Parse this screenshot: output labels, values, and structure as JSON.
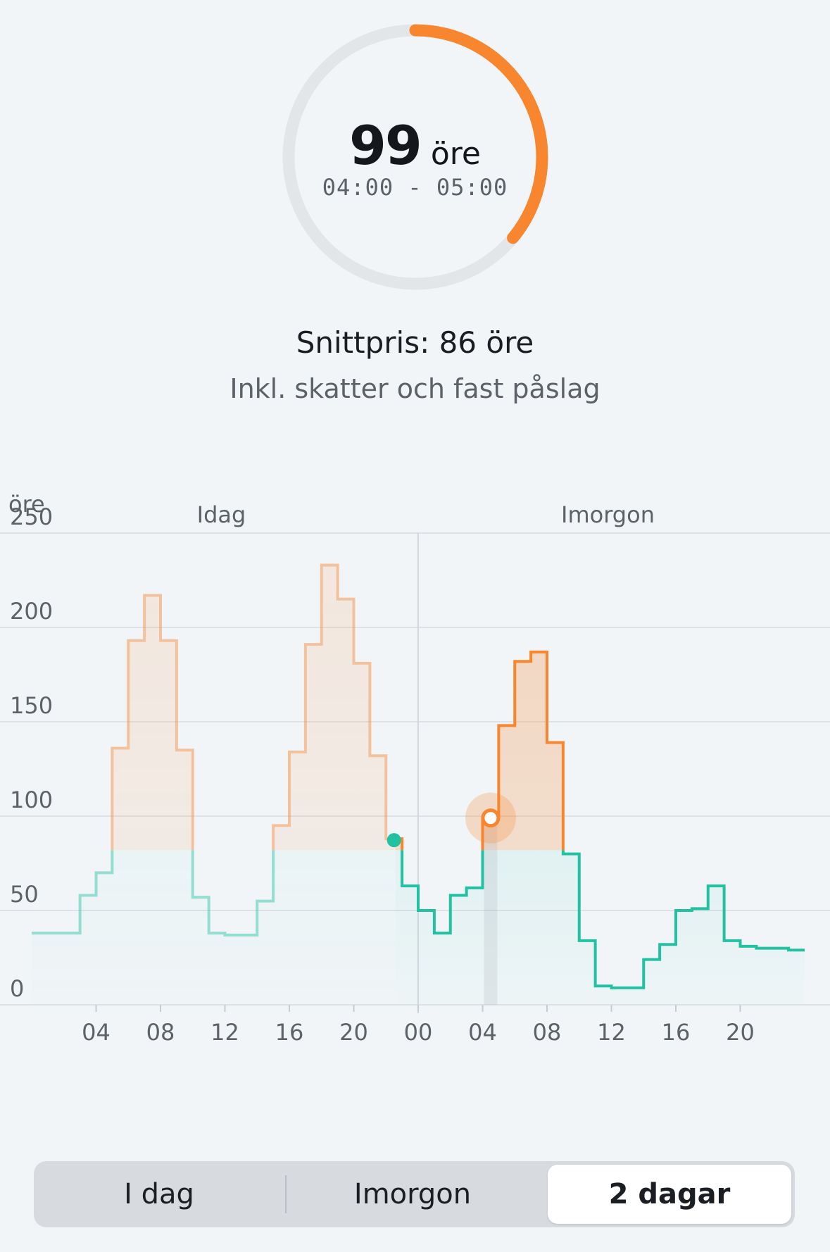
{
  "current": {
    "price": "99",
    "unit": "öre",
    "time": "04:00 - 05:00",
    "ring_fraction": 0.36
  },
  "summary": {
    "average": "Snittpris: 86 öre",
    "note": "Inkl. skatter och fast påslag"
  },
  "chart_data": {
    "type": "line",
    "ylabel": "öre",
    "ylim": [
      0,
      250
    ],
    "yticks": [
      "0",
      "50",
      "100",
      "150",
      "200",
      "250"
    ],
    "xticks": [
      "04",
      "08",
      "12",
      "16",
      "20",
      "00",
      "04",
      "08",
      "12",
      "16",
      "20"
    ],
    "day_labels": [
      "Idag",
      "Imorgon"
    ],
    "series": [
      {
        "values": [
          38,
          38,
          38,
          58,
          70,
          136,
          193,
          217,
          193,
          135,
          57,
          38,
          37,
          37,
          55,
          95,
          134,
          191,
          233,
          215,
          181,
          132,
          88,
          63,
          50,
          38,
          58,
          62,
          99,
          148,
          182,
          187,
          139,
          80,
          34,
          10,
          9,
          9,
          24,
          32,
          50,
          51,
          63,
          34,
          31,
          30,
          30,
          29
        ]
      }
    ],
    "current_index": 28,
    "now_index": 22,
    "colors": {
      "expensive": "#f7862f",
      "cheap": "#22c1a2",
      "grid": "#dfe2e6"
    }
  },
  "tabs": {
    "items": [
      "I dag",
      "Imorgon",
      "2 dagar"
    ],
    "selected": "2 dagar"
  }
}
